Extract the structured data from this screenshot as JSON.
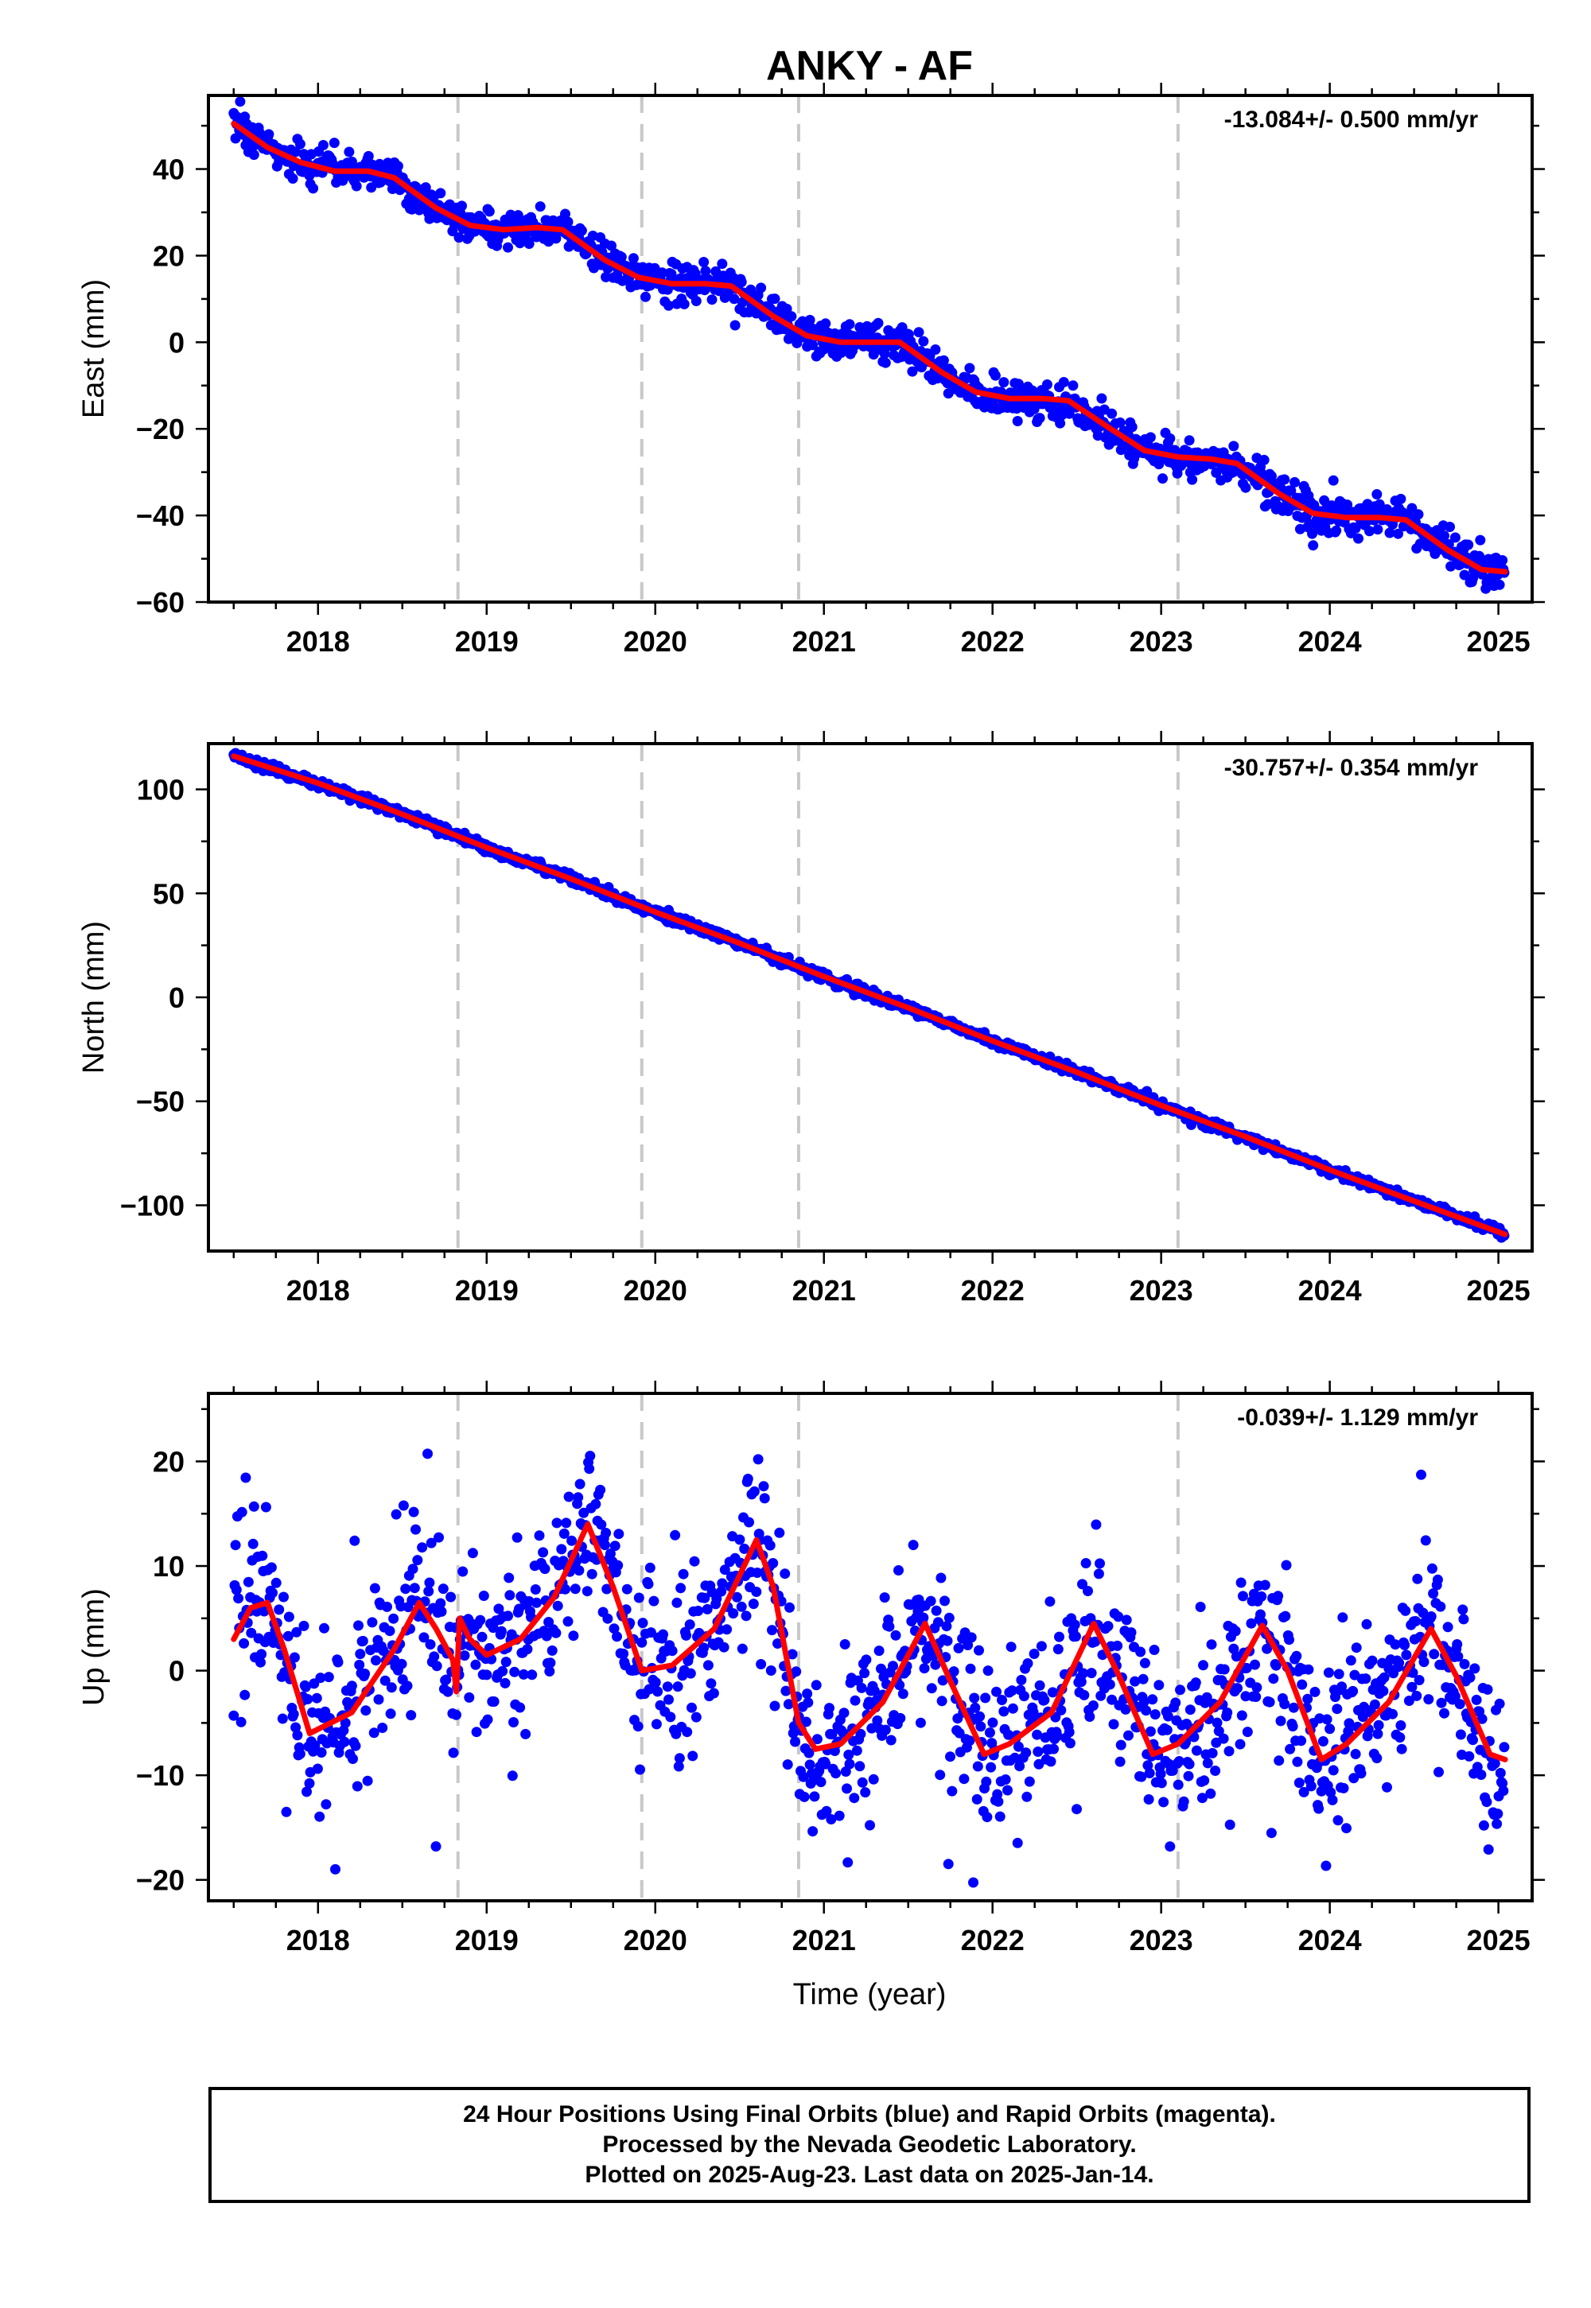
{
  "title": "ANKY - AF",
  "xlabel": "Time (year)",
  "info_lines": [
    "24 Hour Positions Using Final Orbits (blue) and Rapid Orbits (magenta).",
    "Processed by the Nevada Geodetic Laboratory.",
    "Plotted on 2025-Aug-23. Last data on 2025-Jan-14."
  ],
  "colors": {
    "final_orbits": "#0000ff",
    "model": "#ff0000",
    "equipment_change_lines": "#c8c8c8"
  },
  "chart_data": [
    {
      "type": "scatter",
      "ylabel": "East (mm)",
      "rate_text": "-13.084+/- 0.500 mm/yr",
      "xlim": [
        2017.35,
        2025.2
      ],
      "ylim": [
        -60,
        57
      ],
      "x_ticks": [
        2018,
        2019,
        2020,
        2021,
        2022,
        2023,
        2024,
        2025
      ],
      "y_ticks": [
        -60,
        -40,
        -20,
        0,
        20,
        40
      ],
      "vertical_lines": [
        2018.83,
        2019.92,
        2020.85,
        2023.1
      ],
      "series": [
        {
          "values": {
            "x": [
              2017.5,
              2017.7,
              2017.9,
              2018.1,
              2018.3,
              2018.45,
              2018.7,
              2018.9,
              2019.1,
              2019.3,
              2019.45,
              2019.7,
              2019.9,
              2020.1,
              2020.3,
              2020.45,
              2020.7,
              2020.9,
              2021.1,
              2021.3,
              2021.45,
              2021.7,
              2021.9,
              2022.1,
              2022.3,
              2022.45,
              2022.7,
              2022.9,
              2023.1,
              2023.3,
              2023.45,
              2023.7,
              2023.9,
              2024.1,
              2024.3,
              2024.45,
              2024.7,
              2024.9,
              2025.04
            ],
            "y": [
              50.5,
              45,
              41.5,
              39.5,
              39.5,
              38,
              31,
              27,
              26,
              26.5,
              26,
              19,
              15,
              13.5,
              13.5,
              13,
              6,
              1.5,
              0,
              0,
              0,
              -7,
              -11.5,
              -13,
              -13,
              -13.5,
              -20,
              -25,
              -26.5,
              -27,
              -28,
              -35,
              -39.5,
              -40.5,
              -40.5,
              -41,
              -48,
              -52.5,
              -53
            ]
          }
        },
        {
          "values": {
            "x": [
              2017.5,
              2017.7,
              2017.9,
              2018.1,
              2018.3,
              2018.45,
              2018.7,
              2018.9,
              2019.1,
              2019.3,
              2019.45,
              2019.7,
              2019.9,
              2020.1,
              2020.3,
              2020.45,
              2020.7,
              2020.9,
              2021.1,
              2021.3,
              2021.45,
              2021.7,
              2021.9,
              2022.1,
              2022.3,
              2022.45,
              2022.7,
              2022.9,
              2023.1,
              2023.3,
              2023.45,
              2023.7,
              2023.9,
              2024.1,
              2024.3,
              2024.45,
              2024.7,
              2024.9,
              2025.04
            ],
            "y": [
              50.5,
              45,
              41.5,
              39.5,
              39.5,
              38,
              31,
              27,
              26,
              26.5,
              26,
              19,
              15,
              13.5,
              13.5,
              13,
              6,
              1.5,
              0,
              0,
              0,
              -7,
              -11.5,
              -13,
              -13,
              -13.5,
              -20,
              -25,
              -26.5,
              -27,
              -28,
              -35,
              -39.5,
              -40.5,
              -40.5,
              -41,
              -48,
              -52.5,
              -53
            ]
          }
        }
      ]
    },
    {
      "type": "scatter",
      "ylabel": "North (mm)",
      "rate_text": "-30.757+/- 0.354 mm/yr",
      "xlim": [
        2017.35,
        2025.2
      ],
      "ylim": [
        -122,
        122
      ],
      "x_ticks": [
        2018,
        2019,
        2020,
        2021,
        2022,
        2023,
        2024,
        2025
      ],
      "y_ticks": [
        -100,
        -50,
        0,
        50,
        100
      ],
      "vertical_lines": [
        2018.83,
        2019.92,
        2020.85,
        2023.1
      ],
      "series": [
        {
          "values": {
            "x": [
              2017.5,
              2018.0,
              2018.5,
              2019.0,
              2019.5,
              2020.0,
              2020.5,
              2021.0,
              2021.5,
              2022.0,
              2022.5,
              2023.0,
              2023.5,
              2024.0,
              2024.5,
              2025.04
            ],
            "y": [
              116,
              103,
              88,
              72,
              57,
              41,
              26,
              10,
              -5,
              -21,
              -36,
              -52,
              -67,
              -83,
              -98,
              -114
            ]
          }
        },
        {
          "values": {
            "x": [
              2017.5,
              2018.0,
              2018.5,
              2019.0,
              2019.5,
              2020.0,
              2020.5,
              2021.0,
              2021.5,
              2022.0,
              2022.5,
              2023.0,
              2023.5,
              2024.0,
              2024.5,
              2025.04
            ],
            "y": [
              116,
              103,
              88,
              72,
              57,
              41,
              26,
              10,
              -5,
              -21,
              -36,
              -52,
              -67,
              -83,
              -98,
              -114
            ]
          }
        }
      ]
    },
    {
      "type": "scatter",
      "ylabel": "Up (mm)",
      "rate_text": "-0.039+/- 1.129 mm/yr",
      "xlim": [
        2017.35,
        2025.2
      ],
      "ylim": [
        -22,
        26.5
      ],
      "x_ticks": [
        2018,
        2019,
        2020,
        2021,
        2022,
        2023,
        2024,
        2025
      ],
      "y_ticks": [
        -20,
        -10,
        0,
        10,
        20
      ],
      "vertical_lines": [
        2018.83,
        2019.92,
        2020.85,
        2023.1
      ],
      "series": [
        {
          "values": {
            "x": [
              2017.5,
              2017.6,
              2017.7,
              2017.8,
              2017.95,
              2018.2,
              2018.45,
              2018.6,
              2018.7,
              2018.8,
              2018.82,
              2018.84,
              2018.9,
              2019.0,
              2019.2,
              2019.4,
              2019.6,
              2019.75,
              2019.92,
              2020.1,
              2020.35,
              2020.6,
              2020.7,
              2020.85,
              2020.95,
              2021.1,
              2021.35,
              2021.6,
              2021.75,
              2021.95,
              2022.1,
              2022.35,
              2022.6,
              2022.75,
              2022.95,
              2023.1,
              2023.35,
              2023.6,
              2023.75,
              2023.95,
              2024.1,
              2024.35,
              2024.6,
              2024.75,
              2024.95,
              2025.04
            ],
            "y": [
              3,
              6,
              6.5,
              2,
              -6,
              -4,
              2,
              6.5,
              4,
              1,
              -2,
              5,
              3,
              1.5,
              3,
              7,
              14,
              8,
              0,
              0.5,
              4,
              12.5,
              8,
              -5,
              -7.5,
              -7,
              -3,
              4.5,
              -1,
              -8,
              -7,
              -4,
              4.5,
              -0.5,
              -8,
              -7,
              -3,
              4.3,
              0,
              -8.5,
              -7,
              -3,
              4,
              -0.5,
              -8,
              -8.5
            ]
          }
        },
        {
          "values": {
            "x": [
              2017.5,
              2017.6,
              2017.7,
              2017.8,
              2017.95,
              2018.2,
              2018.45,
              2018.6,
              2018.7,
              2018.8,
              2018.82,
              2018.84,
              2018.9,
              2019.0,
              2019.2,
              2019.4,
              2019.6,
              2019.75,
              2019.92,
              2020.1,
              2020.35,
              2020.6,
              2020.7,
              2020.85,
              2020.95,
              2021.1,
              2021.35,
              2021.6,
              2021.75,
              2021.95,
              2022.1,
              2022.35,
              2022.6,
              2022.75,
              2022.95,
              2023.1,
              2023.35,
              2023.6,
              2023.75,
              2023.95,
              2024.1,
              2024.35,
              2024.6,
              2024.75,
              2024.95,
              2025.04
            ],
            "y": [
              3,
              6,
              6.5,
              2,
              -6,
              -4,
              2,
              6.5,
              4,
              1,
              -2,
              5,
              3,
              1.5,
              3,
              7,
              14,
              8,
              0,
              0.5,
              4,
              12.5,
              8,
              -5,
              -7.5,
              -7,
              -3,
              4.5,
              -1,
              -8,
              -7,
              -4,
              4.5,
              -0.5,
              -8,
              -7,
              -3,
              4.3,
              0,
              -8.5,
              -7,
              -3,
              4,
              -0.5,
              -8,
              -8.5
            ]
          }
        }
      ]
    }
  ]
}
